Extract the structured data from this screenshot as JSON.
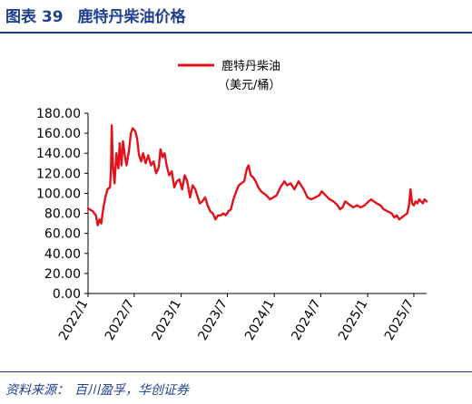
{
  "figure": {
    "label": "图表 39",
    "title": "鹿特丹柴油价格"
  },
  "source": {
    "label": "资料来源：",
    "text": "百川盈孚，华创证券"
  },
  "colors": {
    "series": "#e1121a",
    "title": "#1f3f8f",
    "axis": "#000000"
  },
  "chart_data": {
    "type": "line",
    "title": "",
    "xlabel": "",
    "ylabel": "",
    "legend": {
      "position": "top-center",
      "entries": [
        "鹿特丹柴油",
        "（美元/桶）"
      ]
    },
    "ylim": [
      0,
      180
    ],
    "yticks": [
      "0.00",
      "20.00",
      "40.00",
      "60.00",
      "80.00",
      "100.00",
      "120.00",
      "140.00",
      "160.00",
      "180.00"
    ],
    "xlim": [
      "2022-01-01",
      "2025-08-20"
    ],
    "xticks": [
      "2022/1",
      "2022/7",
      "2023/1",
      "2023/7",
      "2024/1",
      "2024/7",
      "2025/1",
      "2025/7"
    ],
    "grid": false,
    "series": [
      {
        "name": "鹿特丹柴油（美元/桶）",
        "points": [
          [
            "2022-01-01",
            85
          ],
          [
            "2022-01-20",
            82
          ],
          [
            "2022-02-01",
            78
          ],
          [
            "2022-02-08",
            68
          ],
          [
            "2022-02-15",
            74
          ],
          [
            "2022-02-22",
            70
          ],
          [
            "2022-03-01",
            84
          ],
          [
            "2022-03-10",
            96
          ],
          [
            "2022-03-18",
            104
          ],
          [
            "2022-03-28",
            106
          ],
          [
            "2022-04-01",
            125
          ],
          [
            "2022-04-04",
            168
          ],
          [
            "2022-04-08",
            130
          ],
          [
            "2022-04-15",
            110
          ],
          [
            "2022-04-22",
            140
          ],
          [
            "2022-04-30",
            125
          ],
          [
            "2022-05-05",
            150
          ],
          [
            "2022-05-12",
            128
          ],
          [
            "2022-05-18",
            152
          ],
          [
            "2022-05-25",
            138
          ],
          [
            "2022-06-01",
            128
          ],
          [
            "2022-06-10",
            142
          ],
          [
            "2022-06-18",
            160
          ],
          [
            "2022-06-25",
            165
          ],
          [
            "2022-07-05",
            162
          ],
          [
            "2022-07-12",
            155
          ],
          [
            "2022-07-20",
            138
          ],
          [
            "2022-07-28",
            132
          ],
          [
            "2022-08-05",
            140
          ],
          [
            "2022-08-15",
            130
          ],
          [
            "2022-08-25",
            138
          ],
          [
            "2022-09-05",
            128
          ],
          [
            "2022-09-15",
            132
          ],
          [
            "2022-09-25",
            120
          ],
          [
            "2022-10-05",
            126
          ],
          [
            "2022-10-12",
            144
          ],
          [
            "2022-10-20",
            136
          ],
          [
            "2022-10-28",
            140
          ],
          [
            "2022-11-05",
            128
          ],
          [
            "2022-11-15",
            118
          ],
          [
            "2022-11-25",
            122
          ],
          [
            "2022-12-05",
            106
          ],
          [
            "2022-12-15",
            112
          ],
          [
            "2022-12-25",
            114
          ],
          [
            "2023-01-05",
            104
          ],
          [
            "2023-01-15",
            118
          ],
          [
            "2023-01-25",
            112
          ],
          [
            "2023-02-05",
            96
          ],
          [
            "2023-02-15",
            108
          ],
          [
            "2023-02-25",
            104
          ],
          [
            "2023-03-05",
            98
          ],
          [
            "2023-03-15",
            90
          ],
          [
            "2023-03-25",
            92
          ],
          [
            "2023-04-05",
            96
          ],
          [
            "2023-04-15",
            88
          ],
          [
            "2023-04-25",
            82
          ],
          [
            "2023-05-05",
            80
          ],
          [
            "2023-05-15",
            74
          ],
          [
            "2023-05-25",
            78
          ],
          [
            "2023-06-05",
            78
          ],
          [
            "2023-06-15",
            80
          ],
          [
            "2023-06-25",
            78
          ],
          [
            "2023-07-05",
            82
          ],
          [
            "2023-07-15",
            84
          ],
          [
            "2023-07-25",
            94
          ],
          [
            "2023-08-05",
            102
          ],
          [
            "2023-08-15",
            108
          ],
          [
            "2023-08-25",
            110
          ],
          [
            "2023-09-05",
            112
          ],
          [
            "2023-09-15",
            124
          ],
          [
            "2023-09-22",
            128
          ],
          [
            "2023-10-01",
            118
          ],
          [
            "2023-10-10",
            116
          ],
          [
            "2023-10-20",
            112
          ],
          [
            "2023-10-30",
            106
          ],
          [
            "2023-11-10",
            102
          ],
          [
            "2023-11-20",
            100
          ],
          [
            "2023-12-01",
            98
          ],
          [
            "2023-12-15",
            94
          ],
          [
            "2023-12-28",
            96
          ],
          [
            "2024-01-10",
            98
          ],
          [
            "2024-01-25",
            106
          ],
          [
            "2024-02-10",
            112
          ],
          [
            "2024-02-20",
            108
          ],
          [
            "2024-03-05",
            110
          ],
          [
            "2024-03-20",
            104
          ],
          [
            "2024-04-05",
            112
          ],
          [
            "2024-04-15",
            108
          ],
          [
            "2024-04-25",
            104
          ],
          [
            "2024-05-10",
            96
          ],
          [
            "2024-05-25",
            94
          ],
          [
            "2024-06-10",
            96
          ],
          [
            "2024-06-25",
            98
          ],
          [
            "2024-07-05",
            102
          ],
          [
            "2024-07-20",
            98
          ],
          [
            "2024-08-05",
            94
          ],
          [
            "2024-08-20",
            92
          ],
          [
            "2024-09-05",
            88
          ],
          [
            "2024-09-15",
            84
          ],
          [
            "2024-09-25",
            86
          ],
          [
            "2024-10-05",
            92
          ],
          [
            "2024-10-15",
            90
          ],
          [
            "2024-10-25",
            88
          ],
          [
            "2024-11-05",
            86
          ],
          [
            "2024-11-20",
            88
          ],
          [
            "2024-12-05",
            86
          ],
          [
            "2024-12-20",
            88
          ],
          [
            "2025-01-05",
            92
          ],
          [
            "2025-01-15",
            94
          ],
          [
            "2025-01-25",
            92
          ],
          [
            "2025-02-05",
            90
          ],
          [
            "2025-02-20",
            88
          ],
          [
            "2025-03-05",
            84
          ],
          [
            "2025-03-20",
            82
          ],
          [
            "2025-04-05",
            80
          ],
          [
            "2025-04-15",
            76
          ],
          [
            "2025-04-25",
            78
          ],
          [
            "2025-05-05",
            74
          ],
          [
            "2025-05-15",
            76
          ],
          [
            "2025-05-25",
            78
          ],
          [
            "2025-06-05",
            80
          ],
          [
            "2025-06-12",
            88
          ],
          [
            "2025-06-18",
            104
          ],
          [
            "2025-06-24",
            90
          ],
          [
            "2025-07-01",
            88
          ],
          [
            "2025-07-08",
            92
          ],
          [
            "2025-07-15",
            90
          ],
          [
            "2025-07-22",
            94
          ],
          [
            "2025-07-29",
            92
          ],
          [
            "2025-08-05",
            90
          ],
          [
            "2025-08-12",
            94
          ],
          [
            "2025-08-20",
            92
          ]
        ]
      }
    ]
  }
}
